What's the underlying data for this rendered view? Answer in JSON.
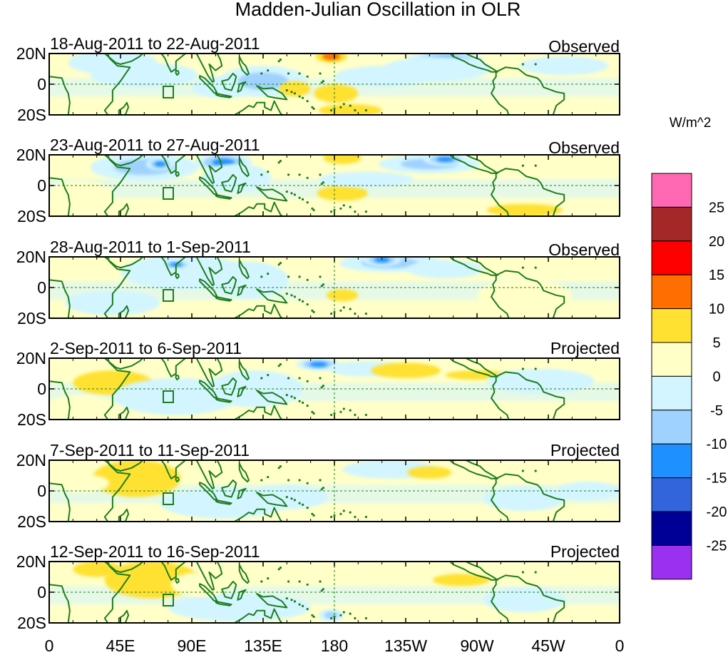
{
  "chart_data": {
    "type": "heatmap",
    "title": "Madden-Julian Oscillation in OLR",
    "colorbar": {
      "unit_label": "W/m^2",
      "colors": [
        "#9b30f0",
        "#000096",
        "#3264dc",
        "#1e90ff",
        "#a0d2ff",
        "#d2f5ff",
        "#ffffc8",
        "#ffe132",
        "#ff6e00",
        "#ff0000",
        "#a52828",
        "#ff69b4"
      ],
      "tick_labels": [
        "25",
        "20",
        "15",
        "10",
        "5",
        "0",
        "-5",
        "-10",
        "-15",
        "-20",
        "-25"
      ],
      "bounds": [
        -25,
        -20,
        -15,
        -10,
        -5,
        0,
        5,
        10,
        15,
        20,
        25
      ]
    },
    "x_axis": {
      "tick_labels": [
        "0",
        "45E",
        "90E",
        "135E",
        "180",
        "135W",
        "90W",
        "45W",
        "0"
      ],
      "lon_range": [
        0,
        360
      ]
    },
    "y_axis": {
      "tick_labels": [
        "20N",
        "0",
        "20S"
      ],
      "lat_range": [
        -20,
        20
      ]
    },
    "reference_lines": [
      "equator",
      "180"
    ],
    "panels": [
      {
        "date_range": "18-Aug-2011 to 22-Aug-2011",
        "status": "Observed",
        "anomalies": [
          {
            "lon": 40,
            "lat": 14,
            "rx": 28,
            "ry": 8,
            "v": -7
          },
          {
            "lon": 60,
            "lat": 6,
            "rx": 34,
            "ry": 8,
            "v": -6
          },
          {
            "lon": 110,
            "lat": -2,
            "rx": 20,
            "ry": 7,
            "v": -6
          },
          {
            "lon": 135,
            "lat": 2,
            "rx": 28,
            "ry": 10,
            "v": -8
          },
          {
            "lon": 155,
            "lat": -3,
            "rx": 10,
            "ry": 5,
            "v": 6
          },
          {
            "lon": 178,
            "lat": 18,
            "rx": 10,
            "ry": 4,
            "v": 11
          },
          {
            "lon": 181,
            "lat": -6,
            "rx": 14,
            "ry": 6,
            "v": 7
          },
          {
            "lon": 210,
            "lat": 5,
            "rx": 30,
            "ry": 7,
            "v": -4
          },
          {
            "lon": 250,
            "lat": 16,
            "rx": 24,
            "ry": 5,
            "v": -13
          },
          {
            "lon": 245,
            "lat": 10,
            "rx": 34,
            "ry": 8,
            "v": -7
          },
          {
            "lon": 325,
            "lat": 12,
            "rx": 28,
            "ry": 6,
            "v": -4
          },
          {
            "lon": 190,
            "lat": -17,
            "rx": 20,
            "ry": 4,
            "v": 6
          }
        ]
      },
      {
        "date_range": "23-Aug-2011 to 27-Aug-2011",
        "status": "Observed",
        "anomalies": [
          {
            "lon": 60,
            "lat": 12,
            "rx": 34,
            "ry": 9,
            "v": -8
          },
          {
            "lon": 70,
            "lat": 14,
            "rx": 9,
            "ry": 4,
            "v": -13
          },
          {
            "lon": 110,
            "lat": 15,
            "rx": 18,
            "ry": 6,
            "v": -13
          },
          {
            "lon": 118,
            "lat": 5,
            "rx": 22,
            "ry": 9,
            "v": -7
          },
          {
            "lon": 185,
            "lat": 18,
            "rx": 12,
            "ry": 4,
            "v": 7
          },
          {
            "lon": 185,
            "lat": -5,
            "rx": 16,
            "ry": 5,
            "v": 7
          },
          {
            "lon": 240,
            "lat": 14,
            "rx": 32,
            "ry": 6,
            "v": -8
          },
          {
            "lon": 250,
            "lat": 17,
            "rx": 14,
            "ry": 4,
            "v": -13
          },
          {
            "lon": 300,
            "lat": -16,
            "rx": 24,
            "ry": 4,
            "v": 6
          },
          {
            "lon": 20,
            "lat": -5,
            "rx": 20,
            "ry": 8,
            "v": 3
          },
          {
            "lon": 200,
            "lat": 4,
            "rx": 30,
            "ry": 5,
            "v": -3
          }
        ]
      },
      {
        "date_range": "28-Aug-2011 to 1-Sep-2011",
        "status": "Observed",
        "anomalies": [
          {
            "lon": 85,
            "lat": 10,
            "rx": 40,
            "ry": 11,
            "v": -7
          },
          {
            "lon": 80,
            "lat": 15,
            "rx": 10,
            "ry": 3,
            "v": -13
          },
          {
            "lon": 125,
            "lat": 5,
            "rx": 26,
            "ry": 12,
            "v": -7
          },
          {
            "lon": 215,
            "lat": 16,
            "rx": 32,
            "ry": 6,
            "v": -8
          },
          {
            "lon": 210,
            "lat": 18,
            "rx": 12,
            "ry": 4,
            "v": -13
          },
          {
            "lon": 250,
            "lat": 12,
            "rx": 24,
            "ry": 6,
            "v": -6
          },
          {
            "lon": 185,
            "lat": -5,
            "rx": 10,
            "ry": 4,
            "v": 6
          },
          {
            "lon": 40,
            "lat": -10,
            "rx": 30,
            "ry": 8,
            "v": -4
          },
          {
            "lon": 300,
            "lat": -5,
            "rx": 30,
            "ry": 10,
            "v": 2
          }
        ]
      },
      {
        "date_range": "2-Sep-2011 to 6-Sep-2011",
        "status": "Projected",
        "anomalies": [
          {
            "lon": 40,
            "lat": 4,
            "rx": 25,
            "ry": 8,
            "v": 6
          },
          {
            "lon": 80,
            "lat": -5,
            "rx": 40,
            "ry": 12,
            "v": -6
          },
          {
            "lon": 130,
            "lat": 0,
            "rx": 30,
            "ry": 12,
            "v": -7
          },
          {
            "lon": 170,
            "lat": 16,
            "rx": 14,
            "ry": 4,
            "v": -13
          },
          {
            "lon": 200,
            "lat": 13,
            "rx": 24,
            "ry": 5,
            "v": -6
          },
          {
            "lon": 225,
            "lat": 12,
            "rx": 22,
            "ry": 5,
            "v": 6
          },
          {
            "lon": 270,
            "lat": 9,
            "rx": 20,
            "ry": 3,
            "v": 6
          },
          {
            "lon": 20,
            "lat": -10,
            "rx": 20,
            "ry": 6,
            "v": 4
          },
          {
            "lon": 310,
            "lat": 5,
            "rx": 34,
            "ry": 8,
            "v": -3
          }
        ]
      },
      {
        "date_range": "7-Sep-2011 to 11-Sep-2011",
        "status": "Projected",
        "anomalies": [
          {
            "lon": 55,
            "lat": 8,
            "rx": 28,
            "ry": 12,
            "v": 7
          },
          {
            "lon": 20,
            "lat": 5,
            "rx": 18,
            "ry": 6,
            "v": 4
          },
          {
            "lon": 110,
            "lat": -8,
            "rx": 40,
            "ry": 10,
            "v": -6
          },
          {
            "lon": 150,
            "lat": -4,
            "rx": 26,
            "ry": 8,
            "v": -6
          },
          {
            "lon": 215,
            "lat": 14,
            "rx": 30,
            "ry": 6,
            "v": -4
          },
          {
            "lon": 240,
            "lat": 12,
            "rx": 14,
            "ry": 4,
            "v": 6
          },
          {
            "lon": 300,
            "lat": -5,
            "rx": 26,
            "ry": 8,
            "v": -4
          },
          {
            "lon": 340,
            "lat": 0,
            "rx": 20,
            "ry": 6,
            "v": -3
          }
        ]
      },
      {
        "date_range": "12-Sep-2011 to 16-Sep-2011",
        "status": "Projected",
        "anomalies": [
          {
            "lon": 65,
            "lat": 8,
            "rx": 30,
            "ry": 12,
            "v": 7
          },
          {
            "lon": 30,
            "lat": 15,
            "rx": 15,
            "ry": 5,
            "v": 5
          },
          {
            "lon": 120,
            "lat": -10,
            "rx": 45,
            "ry": 9,
            "v": -5
          },
          {
            "lon": 95,
            "lat": 5,
            "rx": 18,
            "ry": 8,
            "v": 4
          },
          {
            "lon": 200,
            "lat": 14,
            "rx": 30,
            "ry": 5,
            "v": 3
          },
          {
            "lon": 260,
            "lat": 8,
            "rx": 18,
            "ry": 4,
            "v": 6
          },
          {
            "lon": 178,
            "lat": -15,
            "rx": 8,
            "ry": 4,
            "v": -11
          },
          {
            "lon": 300,
            "lat": -5,
            "rx": 26,
            "ry": 8,
            "v": -3
          }
        ]
      }
    ]
  }
}
